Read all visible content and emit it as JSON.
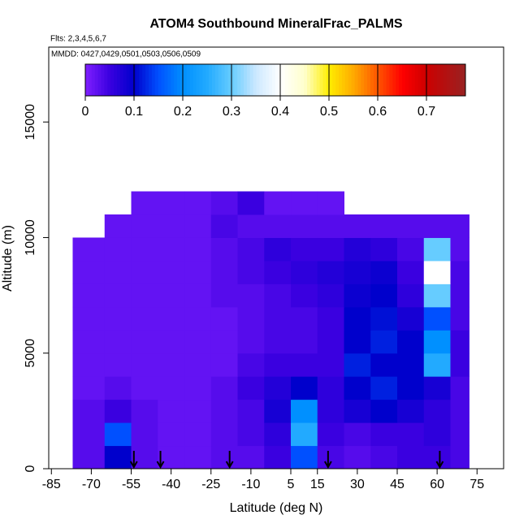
{
  "chart_data": {
    "type": "heatmap",
    "title": "ATOM4 Southbound MineralFrac_PALMS",
    "subtitle": "Flts: 2,3,4,5,6,7",
    "annotation": "MMDD: 0427,0429,0501,0503,0506,0509",
    "x_label": "Latitude (deg N)",
    "y_label": "Altitude (m)",
    "xlim": [
      -86,
      85
    ],
    "ylim": [
      0,
      18240
    ],
    "xticks": [
      -85,
      -70,
      -55,
      -40,
      -25,
      -10,
      5,
      15,
      30,
      45,
      60,
      75
    ],
    "yticks": [
      0,
      5000,
      10000,
      15000
    ],
    "x_edges": [
      -77,
      -65,
      -55,
      -45,
      -35,
      -25,
      -15,
      -5,
      5,
      15,
      25,
      35,
      45,
      55,
      65,
      72
    ],
    "y_edges": [
      0,
      1000,
      2000,
      3000,
      4000,
      5000,
      6000,
      7000,
      8000,
      9000,
      10000,
      11000,
      12000
    ],
    "z": [
      [
        0.03,
        0.1,
        0.03,
        0.02,
        0.02,
        0.03,
        0.03,
        0.05,
        0.15,
        0.04,
        0.03,
        0.04,
        0.05,
        0.05,
        0.04
      ],
      [
        0.03,
        0.15,
        0.03,
        0.02,
        0.02,
        0.03,
        0.04,
        0.06,
        0.25,
        0.05,
        0.04,
        0.05,
        0.05,
        0.06,
        0.04
      ],
      [
        0.03,
        0.05,
        0.03,
        0.02,
        0.02,
        0.03,
        0.04,
        0.08,
        0.2,
        0.06,
        0.08,
        0.1,
        0.08,
        0.06,
        0.04
      ],
      [
        0.02,
        0.03,
        0.02,
        0.02,
        0.02,
        0.03,
        0.05,
        0.07,
        0.1,
        0.06,
        0.1,
        0.12,
        0.1,
        0.08,
        0.04
      ],
      [
        0.02,
        0.02,
        0.02,
        0.02,
        0.02,
        0.02,
        0.04,
        0.05,
        0.05,
        0.05,
        0.12,
        0.1,
        0.1,
        0.25,
        0.05
      ],
      [
        0.02,
        0.02,
        0.02,
        0.02,
        0.02,
        0.02,
        0.03,
        0.04,
        0.04,
        0.05,
        0.1,
        0.12,
        0.1,
        0.2,
        0.05
      ],
      [
        0.02,
        0.02,
        0.02,
        0.02,
        0.02,
        0.02,
        0.03,
        0.04,
        0.04,
        0.05,
        0.1,
        0.11,
        0.08,
        0.15,
        0.04
      ],
      [
        0.02,
        0.02,
        0.02,
        0.02,
        0.02,
        0.03,
        0.03,
        0.04,
        0.05,
        0.06,
        0.09,
        0.1,
        0.06,
        0.3,
        0.04
      ],
      [
        0.02,
        0.02,
        0.02,
        0.02,
        0.02,
        0.03,
        0.04,
        0.05,
        0.06,
        0.07,
        0.08,
        0.09,
        0.05,
        0.4,
        0.04
      ],
      [
        0.02,
        0.02,
        0.02,
        0.02,
        0.02,
        0.03,
        0.04,
        0.06,
        0.05,
        0.05,
        0.07,
        0.06,
        0.04,
        0.3,
        0.03
      ],
      [
        null,
        0.02,
        0.02,
        0.02,
        0.02,
        0.04,
        0.03,
        0.03,
        0.03,
        0.03,
        0.03,
        0.03,
        0.03,
        0.03,
        0.03
      ],
      [
        null,
        null,
        0.02,
        0.02,
        0.02,
        0.03,
        0.05,
        0.02,
        0.02,
        0.02,
        null,
        null,
        null,
        null,
        null
      ]
    ],
    "flight_latitudes": [
      -54,
      -44,
      -18,
      19,
      61
    ],
    "colorbar": {
      "lim": [
        0,
        0.78
      ],
      "ticks": [
        0,
        0.1,
        0.2,
        0.3,
        0.4,
        0.5,
        0.6,
        0.7
      ],
      "stops": [
        0,
        0.05,
        0.1,
        0.15,
        0.2,
        0.25,
        0.3,
        0.35,
        0.4,
        0.45,
        0.5,
        0.55,
        0.6,
        0.65,
        0.7,
        0.78
      ],
      "colors": [
        "#7f1fff",
        "#3a00e0",
        "#0000cc",
        "#0050ff",
        "#0090ff",
        "#22aaff",
        "#66ccff",
        "#cce8ff",
        "#ffffff",
        "#ffffcc",
        "#ffee00",
        "#ffaa00",
        "#ff5500",
        "#ff0000",
        "#cc0000",
        "#992222"
      ]
    }
  }
}
